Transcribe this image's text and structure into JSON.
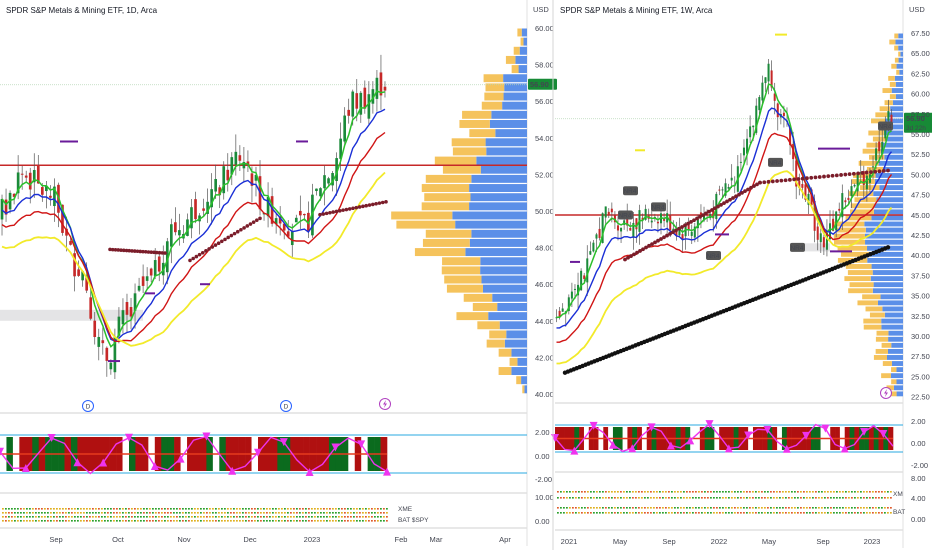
{
  "colors": {
    "up": "#1b8a3a",
    "down": "#c62828",
    "wick": "#555555",
    "priceLine": "#c62828",
    "emaGreen": "#2bbf2b",
    "emaBlue": "#1a2fd6",
    "emaRed": "#d01515",
    "emaYellow": "#f2ea2a",
    "volBlue": "#5b8fe8",
    "volOrange": "#f5c35c",
    "oscMagenta": "#ee33ee",
    "oscRed": "#b01010",
    "oscGreen": "#0b6b1e",
    "oscLine": "#2aa8e0",
    "tagGreen": "#178a36",
    "tagDark": "#555555"
  },
  "left_panel": {
    "title": "SPDR S&P Metals & Mining ETF, 1D, Arca",
    "currency": "USD",
    "price_tag": "56.90",
    "y_ticks": [
      "60.00",
      "58.00",
      "56.00",
      "54.00",
      "52.00",
      "50.00",
      "48.00",
      "46.00",
      "44.00",
      "42.00",
      "40.00"
    ],
    "osc_ticks": [
      "2.00",
      "0.00",
      "-2.00"
    ],
    "lower_ticks": [
      "10.00",
      "0.00"
    ],
    "x_labels": [
      "Sep",
      "Oct",
      "Nov",
      "Dec",
      "2023",
      "Feb",
      "Mar",
      "Apr"
    ],
    "legend_1": "XME",
    "legend_2": "BAT $SPY",
    "markers": [
      "D",
      "D"
    ],
    "lightning_icon": "lightning-icon"
  },
  "right_panel": {
    "title": "SPDR S&P Metals & Mining ETF, 1W, Arca",
    "currency": "USD",
    "price_tag": "56.90",
    "price_tag_sub": "3d 22h",
    "y_ticks": [
      "67.50",
      "65.00",
      "62.50",
      "60.00",
      "57.50",
      "55.00",
      "52.50",
      "50.00",
      "47.50",
      "45.00",
      "42.50",
      "40.00",
      "37.50",
      "35.00",
      "32.50",
      "30.00",
      "27.50",
      "25.00",
      "22.50"
    ],
    "osc_ticks": [
      "2.00",
      "0.00",
      "-2.00"
    ],
    "lower_ticks": [
      "8.00",
      "4.00",
      "0.00"
    ],
    "x_labels": [
      "2021",
      "May",
      "Sep",
      "2022",
      "May",
      "Sep",
      "2023"
    ],
    "legend_1": "XM",
    "legend_2": "BAT",
    "nr_labels": [
      "NR4",
      "NR4",
      "NR4",
      "NR4",
      "NR4",
      "NR4",
      "NR4"
    ],
    "lightning_icon": "lightning-icon"
  },
  "chart_data": [
    {
      "type": "candlestick",
      "title": "SPDR S&P Metals & Mining ETF, 1D, Arca",
      "ylabel": "USD",
      "ylim": [
        40,
        60
      ],
      "x": [
        "Sep",
        "Oct",
        "Nov",
        "Dec",
        "2023",
        "Feb",
        "Mar",
        "Apr"
      ],
      "last_price": 56.9,
      "price_line": 52.5,
      "close_approx": [
        50.0,
        51.5,
        52.3,
        50.5,
        49.0,
        48.0,
        46.5,
        44.0,
        41.5,
        42.5,
        45.0,
        46.5,
        45.5,
        48.0,
        49.5,
        50.5,
        49.0,
        50.5,
        52.0,
        53.0,
        54.5,
        52.0,
        50.5,
        49.0,
        49.5,
        50.5,
        53.0,
        55.0,
        56.5,
        58.0,
        56.9
      ]
    },
    {
      "type": "candlestick",
      "title": "SPDR S&P Metals & Mining ETF, 1W, Arca",
      "ylabel": "USD",
      "ylim": [
        22.5,
        67.5
      ],
      "x": [
        "2021",
        "May",
        "Sep",
        "2022",
        "May",
        "Sep",
        "2023"
      ],
      "last_price": 56.9,
      "price_line": 45.0,
      "close_approx": [
        34.0,
        36.0,
        38.0,
        40.0,
        42.0,
        43.5,
        44.5,
        43.0,
        42.0,
        43.5,
        45.0,
        44.0,
        43.0,
        45.0,
        47.0,
        48.0,
        53.0,
        58.0,
        65.0,
        60.0,
        52.0,
        46.0,
        43.0,
        41.0,
        44.0,
        48.0,
        50.5,
        53.0,
        54.5,
        56.9
      ]
    }
  ]
}
